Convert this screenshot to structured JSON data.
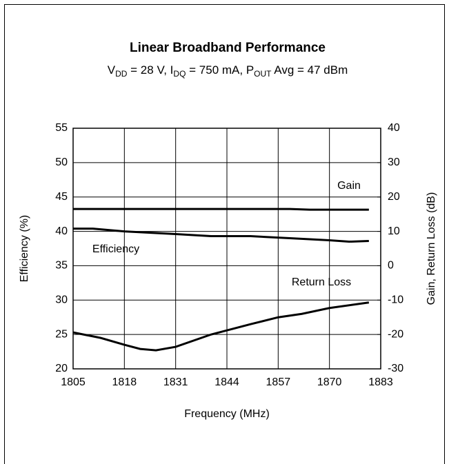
{
  "chart_data": {
    "type": "line",
    "title": "Linear Broadband Performance",
    "subtitle_parts": [
      "V",
      "DD",
      " = 28 V, I",
      "DQ",
      " = 750 mA, P",
      "OUT",
      " Avg = 47 dBm"
    ],
    "xlabel": "Frequency (MHz)",
    "ylabel": "Efficiency (%)",
    "y2label": "Gain, Return Loss (dB)",
    "xlim": [
      1805,
      1883
    ],
    "xticks": [
      1805,
      1818,
      1831,
      1844,
      1857,
      1870,
      1883
    ],
    "ylim": [
      20,
      55
    ],
    "yticks": [
      20,
      25,
      30,
      35,
      40,
      45,
      50,
      55
    ],
    "y2lim": [
      -30,
      40
    ],
    "y2ticks": [
      -30,
      -20,
      -10,
      0,
      10,
      20,
      30,
      40
    ],
    "grid": true,
    "series": [
      {
        "name": "Gain",
        "color": "#000000",
        "axis": "y2",
        "x": [
          1805,
          1820,
          1840,
          1860,
          1865,
          1870,
          1880
        ],
        "values": [
          16.5,
          16.5,
          16.5,
          16.5,
          16.3,
          16.3,
          16.3
        ]
      },
      {
        "name": "Efficiency",
        "color": "#000000",
        "axis": "y",
        "x": [
          1805,
          1810,
          1818,
          1831,
          1840,
          1850,
          1860,
          1870,
          1875,
          1880
        ],
        "values": [
          40.4,
          40.4,
          40.0,
          39.6,
          39.3,
          39.3,
          39.0,
          38.7,
          38.5,
          38.6
        ]
      },
      {
        "name": "Return Loss",
        "color": "#000000",
        "axis": "y2",
        "x": [
          1805,
          1812,
          1818,
          1822,
          1826,
          1831,
          1840,
          1850,
          1857,
          1863,
          1870,
          1880
        ],
        "values": [
          -19.4,
          -21,
          -23,
          -24.2,
          -24.6,
          -23.6,
          -20,
          -17,
          -15,
          -14,
          -12.3,
          -10.7
        ]
      }
    ]
  }
}
